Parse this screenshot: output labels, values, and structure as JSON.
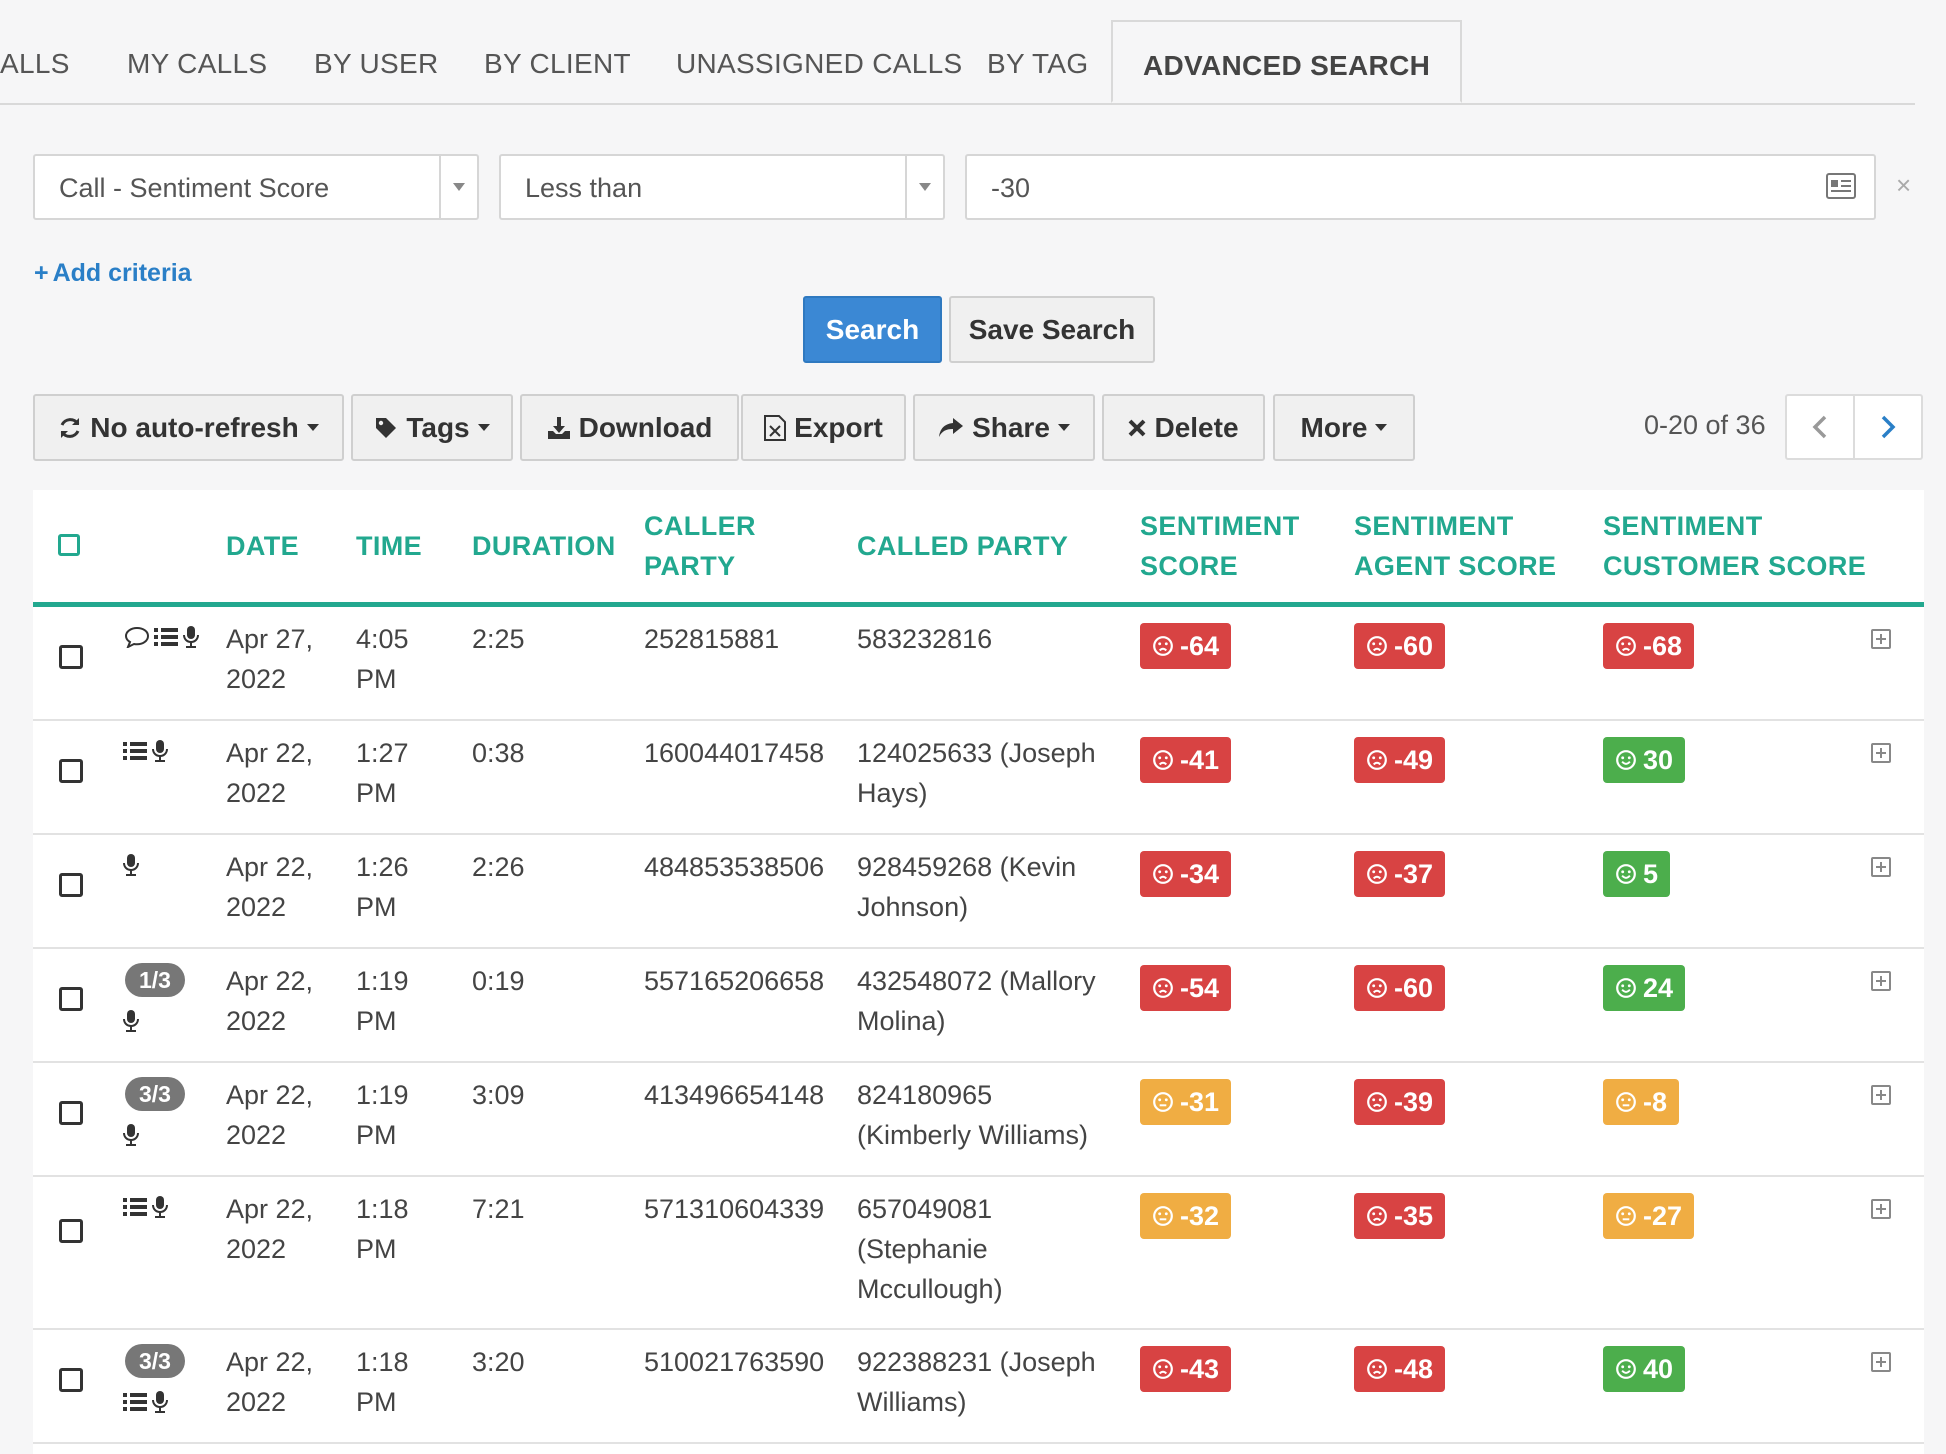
{
  "tabs": [
    "ALLS",
    "MY CALLS",
    "BY USER",
    "BY CLIENT",
    "UNASSIGNED CALLS",
    "BY TAG",
    "ADVANCED SEARCH"
  ],
  "active_tab": "ADVANCED SEARCH",
  "filter": {
    "field": "Call - Sentiment Score",
    "operator": "Less than",
    "value": "-30",
    "clear": "×",
    "add_criteria": "Add criteria"
  },
  "actions": {
    "search": "Search",
    "save_search": "Save Search"
  },
  "toolbar": {
    "auto_refresh": "No auto-refresh",
    "tags": "Tags",
    "download": "Download",
    "export": "Export",
    "share": "Share",
    "delete": "Delete",
    "more": "More"
  },
  "pagination": {
    "range": "0-20 of 36"
  },
  "columns": {
    "date": "DATE",
    "time": "TIME",
    "duration": "DURATION",
    "caller_1": "CALLER",
    "caller_2": "PARTY",
    "called": "CALLED PARTY",
    "sent_1": "SENTIMENT",
    "sent_2": "SCORE",
    "agent_1": "SENTIMENT",
    "agent_2": "AGENT SCORE",
    "cust_1": "SENTIMENT",
    "cust_2": "CUSTOMER SCORE"
  },
  "rows": [
    {
      "date_1": "Apr 27,",
      "date_2": "2022",
      "time_1": "4:05",
      "time_2": "PM",
      "duration": "2:25",
      "caller": "252815881",
      "called_1": "583232816",
      "called_2": "",
      "called_3": "",
      "score": "-64",
      "score_mood": "negative",
      "agent": "-60",
      "agent_mood": "negative",
      "customer": "-68",
      "customer_mood": "negative",
      "pill": "",
      "icons": [
        "comment-icon",
        "list-icon",
        "microphone-icon"
      ]
    },
    {
      "date_1": "Apr 22,",
      "date_2": "2022",
      "time_1": "1:27",
      "time_2": "PM",
      "duration": "0:38",
      "caller": "160044017458",
      "called_1": "124025633 (Joseph",
      "called_2": "Hays)",
      "called_3": "",
      "score": "-41",
      "score_mood": "negative",
      "agent": "-49",
      "agent_mood": "negative",
      "customer": "30",
      "customer_mood": "positive",
      "pill": "",
      "icons": [
        "list-icon",
        "microphone-icon"
      ]
    },
    {
      "date_1": "Apr 22,",
      "date_2": "2022",
      "time_1": "1:26",
      "time_2": "PM",
      "duration": "2:26",
      "caller": "484853538506",
      "called_1": "928459268 (Kevin",
      "called_2": "Johnson)",
      "called_3": "",
      "score": "-34",
      "score_mood": "negative",
      "agent": "-37",
      "agent_mood": "negative",
      "customer": "5",
      "customer_mood": "positive",
      "pill": "",
      "icons": [
        "microphone-icon"
      ]
    },
    {
      "date_1": "Apr 22,",
      "date_2": "2022",
      "time_1": "1:19",
      "time_2": "PM",
      "duration": "0:19",
      "caller": "557165206658",
      "called_1": "432548072 (Mallory",
      "called_2": "Molina)",
      "called_3": "",
      "score": "-54",
      "score_mood": "negative",
      "agent": "-60",
      "agent_mood": "negative",
      "customer": "24",
      "customer_mood": "positive",
      "pill": "1/3",
      "icons": [
        "microphone-icon"
      ]
    },
    {
      "date_1": "Apr 22,",
      "date_2": "2022",
      "time_1": "1:19",
      "time_2": "PM",
      "duration": "3:09",
      "caller": "413496654148",
      "called_1": "824180965",
      "called_2": "(Kimberly Williams)",
      "called_3": "",
      "score": "-31",
      "score_mood": "neutral",
      "agent": "-39",
      "agent_mood": "negative",
      "customer": "-8",
      "customer_mood": "neutral",
      "pill": "3/3",
      "icons": [
        "microphone-icon"
      ]
    },
    {
      "date_1": "Apr 22,",
      "date_2": "2022",
      "time_1": "1:18",
      "time_2": "PM",
      "duration": "7:21",
      "caller": "571310604339",
      "called_1": "657049081",
      "called_2": "(Stephanie",
      "called_3": "Mccullough)",
      "score": "-32",
      "score_mood": "neutral",
      "agent": "-35",
      "agent_mood": "negative",
      "customer": "-27",
      "customer_mood": "neutral",
      "pill": "",
      "icons": [
        "list-icon",
        "microphone-icon"
      ]
    },
    {
      "date_1": "Apr 22,",
      "date_2": "2022",
      "time_1": "1:18",
      "time_2": "PM",
      "duration": "3:20",
      "caller": "510021763590",
      "called_1": "922388231 (Joseph",
      "called_2": "Williams)",
      "called_3": "",
      "score": "-43",
      "score_mood": "negative",
      "agent": "-48",
      "agent_mood": "negative",
      "customer": "40",
      "customer_mood": "positive",
      "pill": "3/3",
      "icons": [
        "list-icon",
        "microphone-icon"
      ]
    }
  ],
  "colors": {
    "accent": "#22a88f",
    "primary": "#3b88d4",
    "negative": "#d84343",
    "neutral": "#f0ad43",
    "positive": "#4cae4c"
  }
}
